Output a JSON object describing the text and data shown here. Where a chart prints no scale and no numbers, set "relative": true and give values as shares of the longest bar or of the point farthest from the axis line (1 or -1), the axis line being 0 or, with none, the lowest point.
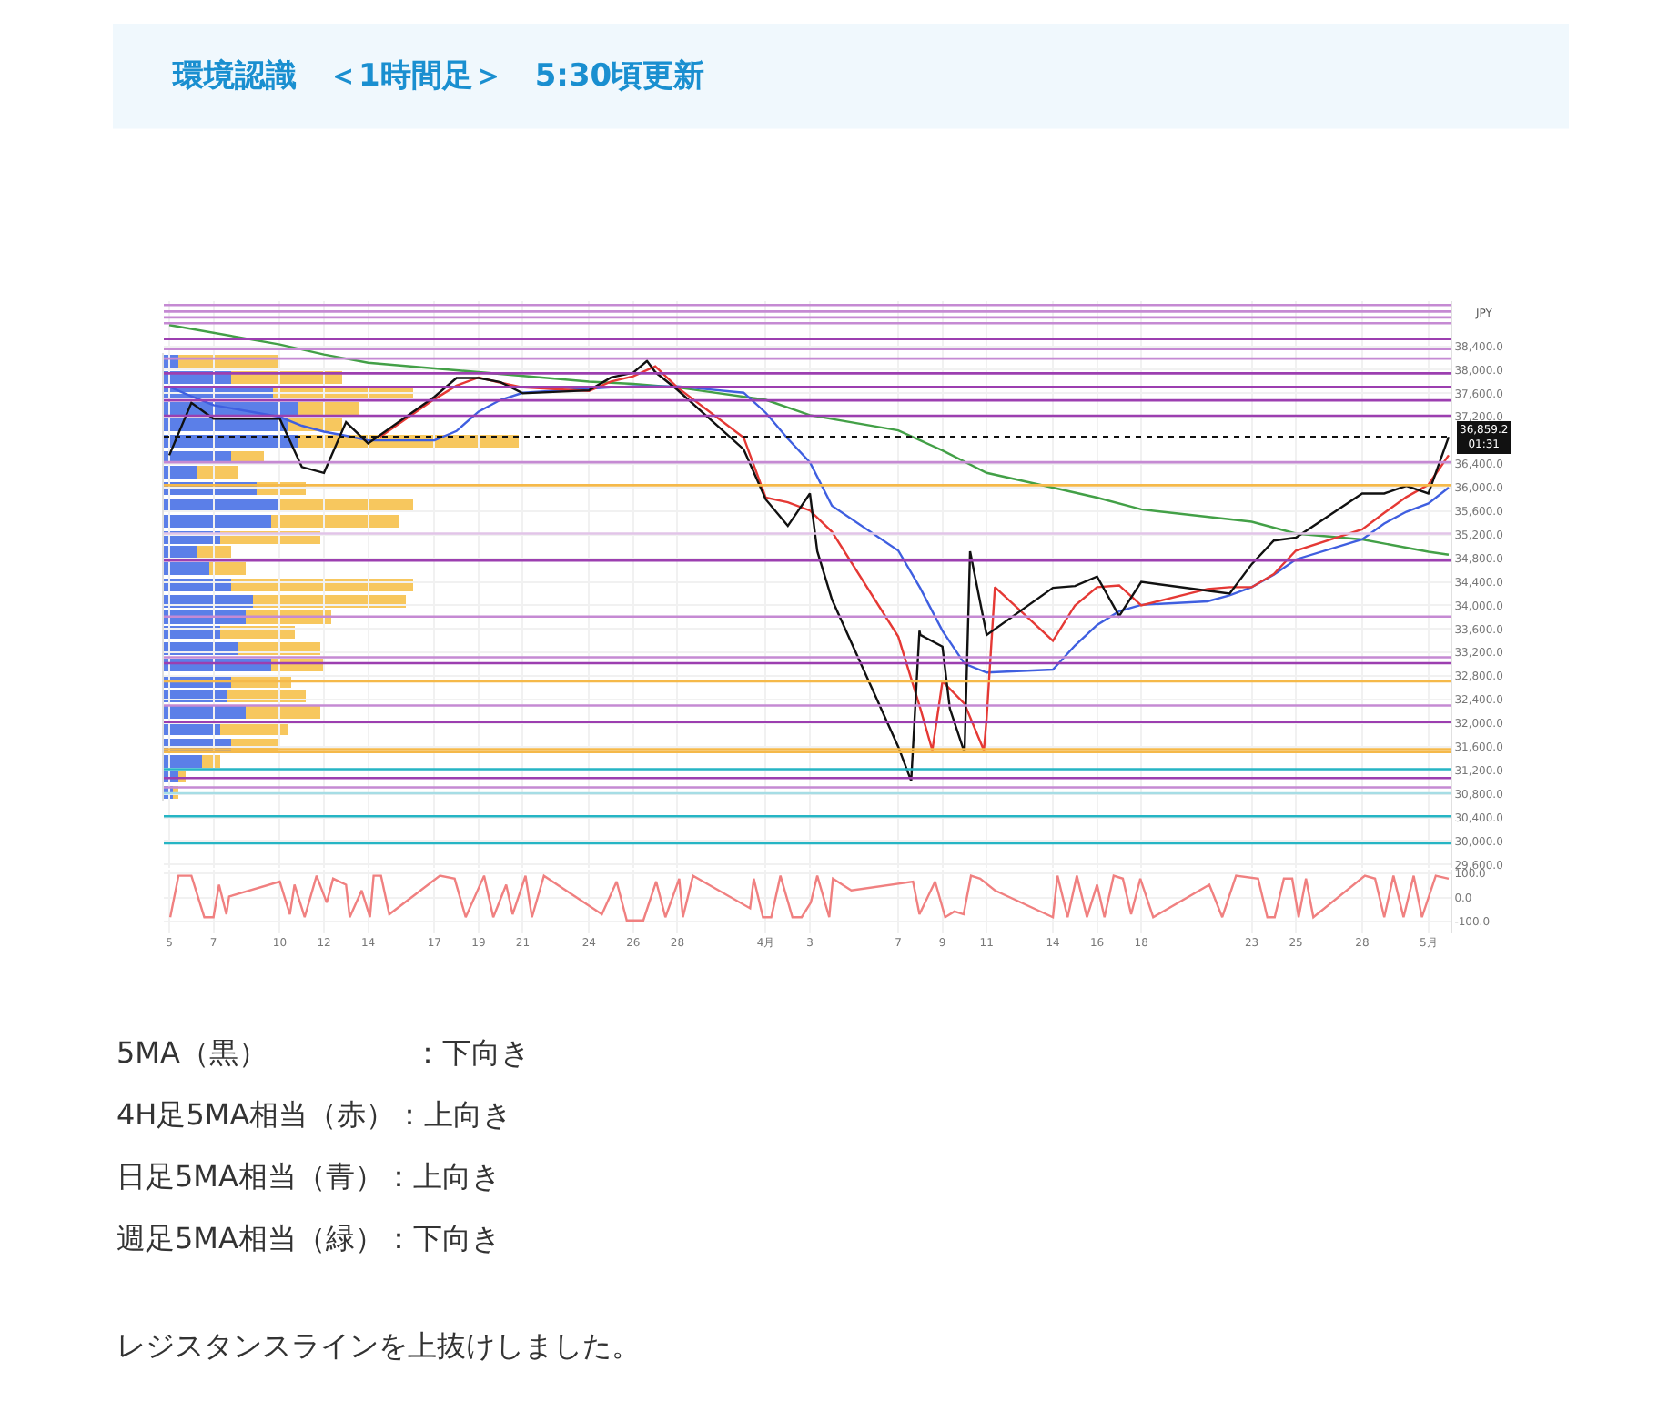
{
  "chart_data": [
    {
      "type": "line",
      "title": "環境認識　＜1時間足＞　5:30頃更新",
      "ylabel": "JPY",
      "annotations": [
        "5MA（黒）　　　　　：下向き",
        "4H足5MA相当（赤）：上向き",
        "日足5MA相当（青）：上向き",
        "週足5MA相当（緑）：下向き",
        "レジスタンスラインを上抜けしました。"
      ],
      "xlim": [
        "--03-04T18:00",
        "--05-02"
      ],
      "ylim": [
        29540,
        39170
      ],
      "xticks": [
        {
          "value": "--03-05",
          "label": "5"
        },
        {
          "value": "--03-07",
          "label": "7"
        },
        {
          "value": "--03-10",
          "label": "10"
        },
        {
          "value": "--03-12",
          "label": "12"
        },
        {
          "value": "--03-14",
          "label": "14"
        },
        {
          "value": "--03-17",
          "label": "17"
        },
        {
          "value": "--03-19",
          "label": "19"
        },
        {
          "value": "--03-21",
          "label": "21"
        },
        {
          "value": "--03-24",
          "label": "24"
        },
        {
          "value": "--03-26",
          "label": "26"
        },
        {
          "value": "--03-28",
          "label": "28"
        },
        {
          "value": "--04-01",
          "label": "4月"
        },
        {
          "value": "--04-03",
          "label": "3"
        },
        {
          "value": "--04-07",
          "label": "7"
        },
        {
          "value": "--04-09",
          "label": "9"
        },
        {
          "value": "--04-11",
          "label": "11"
        },
        {
          "value": "--04-14",
          "label": "14"
        },
        {
          "value": "--04-16",
          "label": "16"
        },
        {
          "value": "--04-18",
          "label": "18"
        },
        {
          "value": "--04-23",
          "label": "23"
        },
        {
          "value": "--04-25",
          "label": "25"
        },
        {
          "value": "--04-28",
          "label": "28"
        },
        {
          "value": "--05-01",
          "label": "5月"
        }
      ],
      "yticks": [
        {
          "value": 38400,
          "label": "38,400.0"
        },
        {
          "value": 38000,
          "label": "38,000.0"
        },
        {
          "value": 37600,
          "label": "37,600.0"
        },
        {
          "value": 37200,
          "label": "37,200.0"
        },
        {
          "value": 36400,
          "label": "36,400.0"
        },
        {
          "value": 36000,
          "label": "36,000.0"
        },
        {
          "value": 35600,
          "label": "35,600.0"
        },
        {
          "value": 35200,
          "label": "35,200.0"
        },
        {
          "value": 34800,
          "label": "34,800.0"
        },
        {
          "value": 34400,
          "label": "34,400.0"
        },
        {
          "value": 34000,
          "label": "34,000.0"
        },
        {
          "value": 33600,
          "label": "33,600.0"
        },
        {
          "value": 33200,
          "label": "33,200.0"
        },
        {
          "value": 32800,
          "label": "32,800.0"
        },
        {
          "value": 32400,
          "label": "32,400.0"
        },
        {
          "value": 32000,
          "label": "32,000.0"
        },
        {
          "value": 31600,
          "label": "31,600.0"
        },
        {
          "value": 31200,
          "label": "31,200.0"
        },
        {
          "value": 30800,
          "label": "30,800.0"
        },
        {
          "value": 30400,
          "label": "30,400.0"
        },
        {
          "value": 30000,
          "label": "30,000.0"
        },
        {
          "value": 29600,
          "label": "29,600.0"
        }
      ],
      "tick_labels": "y",
      "grid": true,
      "marker": "none",
      "line_style": "solid",
      "series": [
        {
          "color": "#43a047",
          "x": [
            "--03-05",
            "--03-10",
            "--03-12",
            "--03-14",
            "--03-19",
            "--03-24",
            "--03-26",
            "--03-28",
            "--04-01",
            "--04-03",
            "--04-07",
            "--04-09",
            "--04-11",
            "--04-14",
            "--04-16",
            "--04-18",
            "--04-23",
            "--04-25",
            "--04-28",
            "--04-30",
            "--05-01",
            "--05-01T22:00"
          ],
          "values": [
            38760,
            38430,
            38260,
            38120,
            37960,
            37800,
            37760,
            37700,
            37490,
            37230,
            36970,
            36630,
            36250,
            36000,
            35830,
            35630,
            35420,
            35220,
            35120,
            34980,
            34910,
            34860
          ]
        },
        {
          "color": "#3f5fe0",
          "x": [
            "--03-05",
            "--03-06",
            "--03-07",
            "--03-10",
            "--03-11",
            "--03-12",
            "--03-13",
            "--03-14",
            "--03-17",
            "--03-18",
            "--03-19",
            "--03-20",
            "--03-21",
            "--03-24",
            "--03-25",
            "--03-26",
            "--03-27",
            "--03-28",
            "--03-31",
            "--04-01",
            "--04-02",
            "--04-03",
            "--04-04",
            "--04-07",
            "--04-08",
            "--04-09",
            "--04-10",
            "--04-11",
            "--04-14",
            "--04-15",
            "--04-16",
            "--04-17",
            "--04-18",
            "--04-21",
            "--04-22",
            "--04-23",
            "--04-24",
            "--04-25",
            "--04-28",
            "--04-29",
            "--04-30",
            "--05-01",
            "--05-01T22:00"
          ],
          "values": [
            37710,
            37550,
            37400,
            37200,
            37050,
            36950,
            36880,
            36800,
            36800,
            36960,
            37290,
            37490,
            37610,
            37680,
            37700,
            37720,
            37720,
            37720,
            37610,
            37270,
            36830,
            36430,
            35690,
            34930,
            34290,
            33570,
            33010,
            32860,
            32910,
            33320,
            33670,
            33900,
            34010,
            34070,
            34170,
            34310,
            34520,
            34780,
            35120,
            35390,
            35590,
            35730,
            36000
          ]
        },
        {
          "color": "#e53935",
          "x": [
            "--03-14T13:00",
            "--03-17",
            "--03-18",
            "--03-19",
            "--03-20",
            "--03-21",
            "--03-24",
            "--03-25",
            "--03-26",
            "--03-27",
            "--03-28",
            "--03-31",
            "--04-01",
            "--04-02",
            "--04-03",
            "--04-04",
            "--04-07",
            "--04-08",
            "--04-08T13:00",
            "--04-09",
            "--04-10",
            "--04-10T21:00",
            "--04-11",
            "--04-11T09:00",
            "--04-14",
            "--04-15",
            "--04-16",
            "--04-17",
            "--04-18",
            "--04-21",
            "--04-22",
            "--04-23",
            "--04-24",
            "--04-25",
            "--04-28",
            "--04-29",
            "--04-30",
            "--05-01",
            "--05-01T22:00"
          ],
          "values": [
            36860,
            37500,
            37730,
            37870,
            37780,
            37700,
            37640,
            37800,
            37890,
            38060,
            37700,
            36850,
            35830,
            35750,
            35610,
            35250,
            33470,
            32250,
            31540,
            32710,
            32330,
            31540,
            32090,
            34310,
            33400,
            34000,
            34310,
            34340,
            34000,
            34280,
            34310,
            34310,
            34530,
            34930,
            35290,
            35570,
            35840,
            36050,
            36550
          ]
        },
        {
          "color": "#111111",
          "x": [
            "--03-05",
            "--03-06",
            "--03-07",
            "--03-10",
            "--03-11",
            "--03-12",
            "--03-13",
            "--03-14",
            "--03-17",
            "--03-18",
            "--03-19",
            "--03-20",
            "--03-21",
            "--03-24",
            "--03-25",
            "--03-26",
            "--03-26T15:00",
            "--03-27",
            "--03-28",
            "--03-31",
            "--04-01",
            "--04-02",
            "--04-03",
            "--04-03T08:00",
            "--04-04",
            "--04-07",
            "--04-07T14:00",
            "--04-07T23:00",
            "--04-08",
            "--04-09",
            "--04-09T08:00",
            "--04-10",
            "--04-10T06:00",
            "--04-11",
            "--04-14",
            "--04-15",
            "--04-16",
            "--04-17",
            "--04-18",
            "--04-21",
            "--04-22",
            "--04-23",
            "--04-24",
            "--04-25",
            "--04-28",
            "--04-29",
            "--04-30",
            "--05-01",
            "--05-01T22:00"
          ],
          "values": [
            36550,
            37440,
            37170,
            37170,
            36350,
            36250,
            37110,
            36750,
            37540,
            37860,
            37860,
            37790,
            37600,
            37650,
            37870,
            37950,
            38150,
            37960,
            37660,
            36650,
            35800,
            35350,
            35900,
            34920,
            34100,
            31600,
            31020,
            33570,
            33500,
            33300,
            32250,
            31500,
            34920,
            33500,
            34300,
            34330,
            34490,
            33820,
            34400,
            34250,
            34200,
            34700,
            35100,
            35150,
            35900,
            35900,
            36030,
            35900,
            36860
          ]
        }
      ],
      "ref_lines": [
        {
          "axis": "y",
          "value": 39100,
          "color": "#c58ad3"
        },
        {
          "axis": "y",
          "value": 38990,
          "color": "#c58ad3"
        },
        {
          "axis": "y",
          "value": 38890,
          "color": "#c58ad3"
        },
        {
          "axis": "y",
          "value": 38790,
          "color": "#c58ad3"
        },
        {
          "axis": "y",
          "value": 38520,
          "color": "#9c3fb0"
        },
        {
          "axis": "y",
          "value": 38350,
          "color": "#c58ad3"
        },
        {
          "axis": "y",
          "value": 38190,
          "color": "#c58ad3"
        },
        {
          "axis": "y",
          "value": 37940,
          "color": "#9c3fb0"
        },
        {
          "axis": "y",
          "value": 37710,
          "color": "#9c3fb0"
        },
        {
          "axis": "y",
          "value": 37480,
          "color": "#9c3fb0"
        },
        {
          "axis": "y",
          "value": 37220,
          "color": "#9c3fb0"
        },
        {
          "axis": "y",
          "value": 36859.2,
          "color": "#111111",
          "line_style": "dotted",
          "label": "36,859.2\n01:31"
        },
        {
          "axis": "y",
          "value": 36430,
          "color": "#c58ad3"
        },
        {
          "axis": "y",
          "value": 36040,
          "color": "#f5b94a"
        },
        {
          "axis": "y",
          "value": 35220,
          "color": "#e2c4e8"
        },
        {
          "axis": "y",
          "value": 34760,
          "color": "#9c3fb0"
        },
        {
          "axis": "y",
          "value": 33810,
          "color": "#c58ad3"
        },
        {
          "axis": "y",
          "value": 33120,
          "color": "#c58ad3"
        },
        {
          "axis": "y",
          "value": 33020,
          "color": "#9c3fb0"
        },
        {
          "axis": "y",
          "value": 32710,
          "color": "#f5b94a"
        },
        {
          "axis": "y",
          "value": 32300,
          "color": "#c58ad3"
        },
        {
          "axis": "y",
          "value": 32020,
          "color": "#9c3fb0"
        },
        {
          "axis": "y",
          "value": 31560,
          "color": "#f5b94a"
        },
        {
          "axis": "y",
          "value": 31510,
          "color": "#f5b94a"
        },
        {
          "axis": "y",
          "value": 31220,
          "color": "#26b5c4"
        },
        {
          "axis": "y",
          "value": 31070,
          "color": "#9c3fb0"
        },
        {
          "axis": "y",
          "value": 30910,
          "color": "#c58ad3"
        },
        {
          "axis": "y",
          "value": 30810,
          "color": "#a6dde5"
        },
        {
          "axis": "y",
          "value": 30420,
          "color": "#26b5c4"
        },
        {
          "axis": "y",
          "value": 29960,
          "color": "#26b5c4"
        }
      ]
    },
    {
      "type": "bar",
      "orientation": "horizontal",
      "stacked": true,
      "relative": true,
      "categories": [
        null,
        null,
        null,
        null,
        null,
        null,
        null,
        null,
        null,
        null,
        null,
        null,
        null,
        null,
        null,
        null,
        null,
        null,
        null,
        null,
        null,
        null,
        null,
        null,
        null,
        null,
        null,
        null
      ],
      "series": [
        {
          "color": "#5b7fe8",
          "values": [
            0.04,
            0.19,
            0.31,
            0.38,
            0.35,
            0.38,
            0.19,
            0.09,
            0.26,
            0.33,
            0.3,
            0.16,
            0.09,
            0.13,
            0.19,
            0.25,
            0.23,
            0.16,
            0.21,
            0.3,
            0.19,
            0.18,
            0.23,
            0.16,
            0.19,
            0.11,
            0.04,
            0.03
          ]
        },
        {
          "color": "#f7c75e",
          "values": [
            0.29,
            0.31,
            0.39,
            0.17,
            0.15,
            0.62,
            0.09,
            0.12,
            0.14,
            0.37,
            0.36,
            0.28,
            0.1,
            0.1,
            0.51,
            0.43,
            0.24,
            0.21,
            0.23,
            0.15,
            0.17,
            0.22,
            0.21,
            0.19,
            0.14,
            0.05,
            0.02,
            0.01
          ]
        }
      ]
    },
    {
      "type": "line",
      "xlim": [
        "--03-04T18:00",
        "--05-02"
      ],
      "ylim": [
        -148,
        115
      ],
      "grid": true,
      "marker": "none",
      "xticks": [
        {
          "value": "--03-05",
          "label": "5"
        },
        {
          "value": "--03-07",
          "label": "7"
        },
        {
          "value": "--03-10",
          "label": "10"
        },
        {
          "value": "--03-12",
          "label": "12"
        },
        {
          "value": "--03-14",
          "label": "14"
        },
        {
          "value": "--03-17",
          "label": "17"
        },
        {
          "value": "--03-19",
          "label": "19"
        },
        {
          "value": "--03-21",
          "label": "21"
        },
        {
          "value": "--03-24",
          "label": "24"
        },
        {
          "value": "--03-26",
          "label": "26"
        },
        {
          "value": "--03-28",
          "label": "28"
        },
        {
          "value": "--04-01",
          "label": "4月"
        },
        {
          "value": "--04-03",
          "label": "3"
        },
        {
          "value": "--04-07",
          "label": "7"
        },
        {
          "value": "--04-09",
          "label": "9"
        },
        {
          "value": "--04-11",
          "label": "11"
        },
        {
          "value": "--04-14",
          "label": "14"
        },
        {
          "value": "--04-16",
          "label": "16"
        },
        {
          "value": "--04-18",
          "label": "18"
        },
        {
          "value": "--04-23",
          "label": "23"
        },
        {
          "value": "--04-25",
          "label": "25"
        },
        {
          "value": "--04-28",
          "label": "28"
        },
        {
          "value": "--05-01",
          "label": "5月"
        }
      ],
      "yticks": [
        {
          "value": 100,
          "label": "100.0"
        },
        {
          "value": 0,
          "label": "0.0"
        },
        {
          "value": -100,
          "label": "-100.0"
        }
      ],
      "series": [
        {
          "color": "#f08080",
          "x": [
            "--03-05T01:00",
            "--03-05T10:00",
            "--03-06",
            "--03-06T14:00",
            "--03-07",
            "--03-07T06:00",
            "--03-07T14:00",
            "--03-07T17:00",
            "--03-10",
            "--03-10T11:00",
            "--03-10T16:00",
            "--03-11T03:00",
            "--03-11T16:00",
            "--03-12T03:00",
            "--03-12T10:00",
            "--03-13",
            "--03-13T04:00",
            "--03-13T17:00",
            "--03-14T02:00",
            "--03-14T06:00",
            "--03-14T14:00",
            "--03-14T23:00",
            "--03-17T06:00",
            "--03-17T22:00",
            "--03-18T10:00",
            "--03-19T06:00",
            "--03-19T16:00",
            "--03-20T06:00",
            "--03-20T13:00",
            "--03-21T03:00",
            "--03-21T10:00",
            "--03-21T23:00",
            "--03-24T14:00",
            "--03-25T06:00",
            "--03-25T17:00",
            "--03-26T11:00",
            "--03-27T01:00",
            "--03-27T11:00",
            "--03-28T02:00",
            "--03-28T06:00",
            "--03-28T17:00",
            "--03-31T07:00",
            "--03-31T11:00",
            "--03-31T21:00",
            "--04-01T06:00",
            "--04-01T16:00",
            "--04-02T05:00",
            "--04-02T15:00",
            "--04-03T01:00",
            "--04-03T08:00",
            "--04-03T21:00",
            "--04-04T01:00",
            "--04-04T21:00",
            "--04-07T16:00",
            "--04-07T23:00",
            "--04-08T16:00",
            "--04-09T03:00",
            "--04-09T13:00",
            "--04-09T23:00",
            "--04-10T07:00",
            "--04-10T17:00",
            "--04-11T09:00",
            "--04-14",
            "--04-14T05:00",
            "--04-14T16:00",
            "--04-15T02:00",
            "--04-15T13:00",
            "--04-16",
            "--04-16T08:00",
            "--04-16T18:00",
            "--04-17T04:00",
            "--04-17T13:00",
            "--04-17T23:00",
            "--04-18T13:00",
            "--04-21T02:00",
            "--04-21T16:00",
            "--04-22T07:00",
            "--04-23T07:00",
            "--04-23T17:00",
            "--04-24T01:00",
            "--04-24T11:00",
            "--04-24T20:00",
            "--04-25T03:00",
            "--04-25T11:00",
            "--04-25T19:00",
            "--04-28T03:00",
            "--04-28T14:00",
            "--04-29",
            "--04-29T10:00",
            "--04-29T21:00",
            "--04-30T08:00",
            "--04-30T17:00",
            "--05-01T08:00",
            "--05-01T22:00"
          ],
          "values": [
            -81,
            91,
            91,
            -81,
            -81,
            54,
            -69,
            5,
            67,
            -69,
            54,
            -81,
            91,
            -20,
            79,
            54,
            -81,
            30,
            -81,
            91,
            91,
            -69,
            91,
            79,
            -81,
            91,
            -81,
            54,
            -69,
            91,
            -81,
            91,
            -69,
            67,
            -94,
            -94,
            67,
            -81,
            79,
            -81,
            91,
            -44,
            79,
            -81,
            -81,
            91,
            -81,
            -81,
            -20,
            91,
            -81,
            79,
            30,
            67,
            -69,
            67,
            -81,
            -57,
            -69,
            91,
            79,
            30,
            -81,
            91,
            -81,
            91,
            -81,
            54,
            -81,
            91,
            79,
            -69,
            79,
            -81,
            54,
            -81,
            91,
            79,
            -81,
            -81,
            79,
            79,
            -81,
            79,
            -81,
            91,
            79,
            -81,
            91,
            -81,
            91,
            -81,
            91,
            79
          ]
        }
      ]
    }
  ]
}
